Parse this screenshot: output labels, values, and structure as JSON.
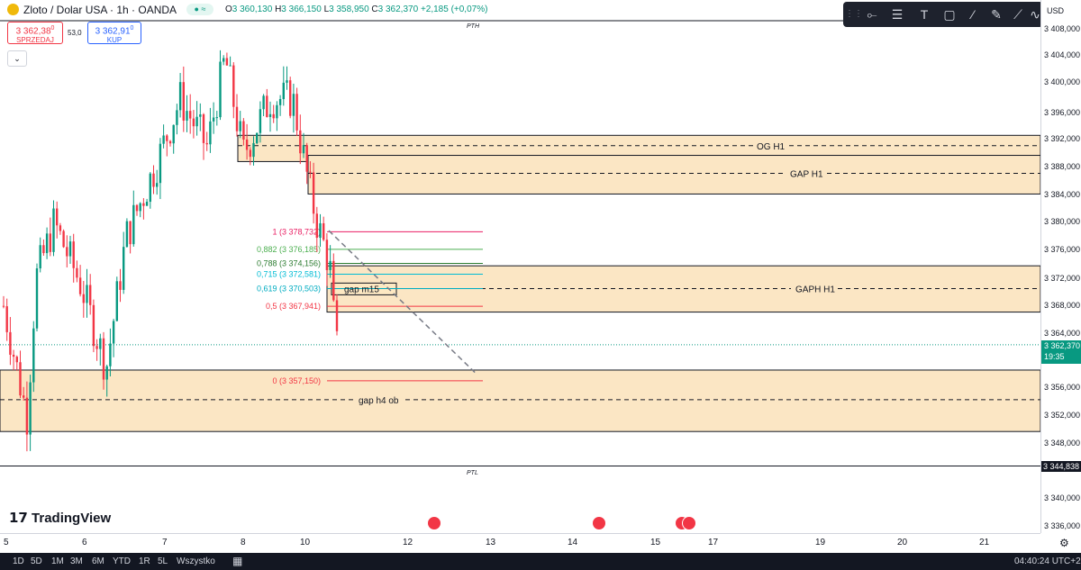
{
  "header": {
    "symbol": "Zloto / Dolar USA · 1h · OANDA",
    "open_label": "O",
    "open": "3 360,130",
    "high_label": "H",
    "high": "3 366,150",
    "low_label": "L",
    "low": "3 358,950",
    "close_label": "C",
    "close": "3 362,370",
    "change": "+2,185 (+0,07%)"
  },
  "quotes": {
    "sell_price": "3 362,38",
    "sell_sup": "0",
    "sell_label": "SPRZEDAJ",
    "spread": "53,0",
    "buy_price": "3 362,91",
    "buy_sup": "0",
    "buy_label": "KUP"
  },
  "currency": "USD",
  "price_ticks": [
    "3 408,000",
    "3 404,000",
    "3 400,000",
    "3 396,000",
    "3 392,000",
    "3 388,000",
    "3 384,000",
    "3 380,000",
    "3 376,000",
    "3 372,000",
    "3 368,000",
    "3 364,000",
    "3 356,000",
    "3 352,000",
    "3 348,000",
    "3 340,000",
    "3 336,000"
  ],
  "last_price": {
    "value": "3 362,370",
    "countdown": "19:35",
    "color": "#089981"
  },
  "ptl_badge": "3 344,838",
  "date_ticks": [
    "5",
    "6",
    "7",
    "8",
    "10",
    "12",
    "13",
    "14",
    "15",
    "17",
    "19",
    "20",
    "21"
  ],
  "drawings": {
    "pth": "PTH",
    "ptl": "PTL",
    "og_h1": "OG H1",
    "gap_h1": "GAP H1",
    "gaph_h1": "GAPH H1",
    "gap_m15": "gap m15",
    "gap_h4_ob": "gap h4 ob"
  },
  "fib_levels": [
    {
      "label": "1 (3 378,732)",
      "price": 3378.732,
      "color": "#e91e63"
    },
    {
      "label": "0,882 (3 376,185)",
      "price": 3376.185,
      "color": "#4caf50"
    },
    {
      "label": "0,788 (3 374,156)",
      "price": 3374.156,
      "color": "#2e7d32"
    },
    {
      "label": "0,715 (3 372,581)",
      "price": 3372.581,
      "color": "#00bcd4"
    },
    {
      "label": "0,619 (3 370,503)",
      "price": 3370.503,
      "color": "#00acc1"
    },
    {
      "label": "0,5 (3 367,941)",
      "price": 3367.941,
      "color": "#f23645"
    },
    {
      "label": "0 (3 357,150)",
      "price": 3357.15,
      "color": "#f23645"
    }
  ],
  "branding": "TradingView",
  "timeframes": [
    "1D",
    "5D",
    "1M",
    "3M",
    "6M",
    "YTD",
    "1R",
    "5L",
    "Wszystko"
  ],
  "clock": "04:40:24 UTC+2",
  "colors": {
    "up": "#089981",
    "down": "#f23645",
    "zone": "#fbe6c4",
    "zone_border": "#131722"
  }
}
